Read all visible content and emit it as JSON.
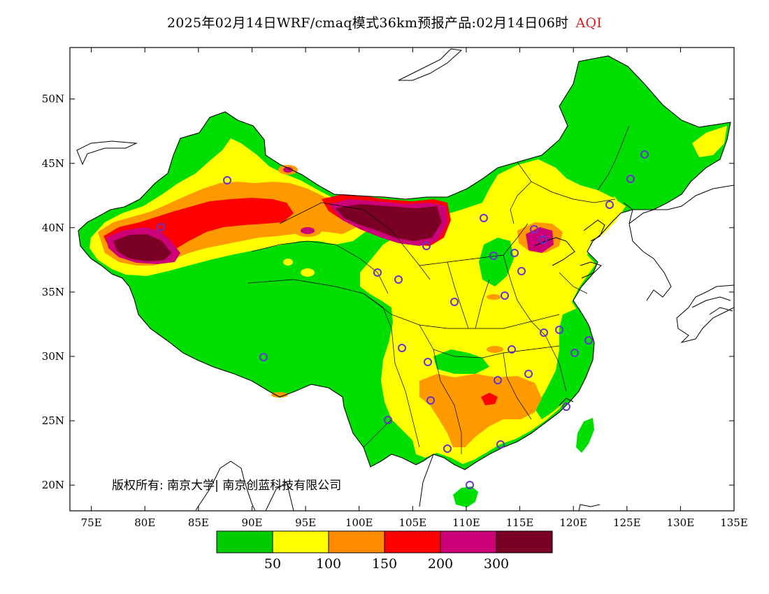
{
  "header": {
    "title": "2025年02月14日WRF/cmaq模式36km预报产品:02月14日06时",
    "variable": "AQI",
    "variable_color": "#d62020"
  },
  "axes": {
    "x_ticks": [
      "75E",
      "80E",
      "85E",
      "90E",
      "95E",
      "100E",
      "105E",
      "110E",
      "115E",
      "120E",
      "125E",
      "130E",
      "135E"
    ],
    "y_ticks": [
      "50N",
      "45N",
      "40N",
      "35N",
      "30N",
      "25N",
      "20N"
    ],
    "lon_range": [
      73,
      135
    ],
    "lat_range": [
      18,
      54
    ]
  },
  "legend": {
    "colors": [
      "#00cc00",
      "#ffff00",
      "#ff8c00",
      "#ff0000",
      "#cc0077",
      "#7a0026"
    ],
    "labels": [
      "50",
      "100",
      "150",
      "200",
      "300"
    ]
  },
  "copyright": "版权所有: 南京大学| 南京创蓝科技有限公司",
  "map_colors": {
    "green": "#00dd00",
    "yellow": "#ffff00",
    "orange": "#ff9900",
    "red": "#ff0000",
    "magenta": "#cc0077",
    "maroon": "#7a0026"
  }
}
